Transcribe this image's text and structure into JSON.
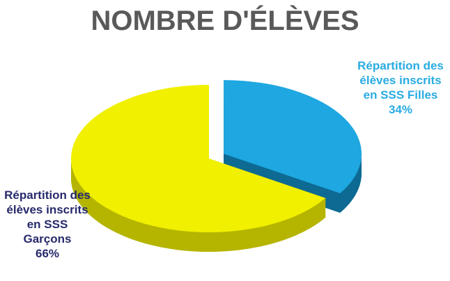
{
  "chart_data": {
    "type": "pie3d",
    "title": "NOMBRE D'ÉLÈVES",
    "categories": [
      "Répartition des élèves inscrits en SSS Filles",
      "Répartition des élèves inscrits en SSS Garçons"
    ],
    "values": [
      34,
      66
    ],
    "value_labels": [
      "34%",
      "66%"
    ],
    "colors": [
      "#1ea7e1",
      "#f0f000"
    ],
    "side_colors": [
      "#0d6a92",
      "#b5b500"
    ],
    "label_colors": [
      "#29abe2",
      "#262a6b"
    ]
  }
}
